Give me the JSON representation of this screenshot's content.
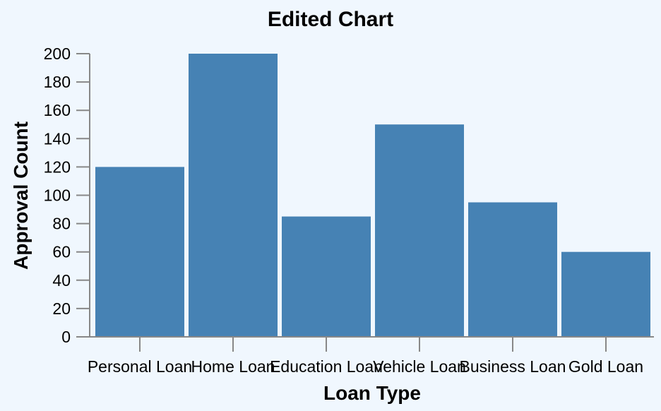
{
  "chart_data": {
    "type": "bar",
    "title": "Edited Chart",
    "xlabel": "Loan Type",
    "ylabel": "Approval Count",
    "categories": [
      "Personal Loan",
      "Home Loan",
      "Education Loan",
      "Vehicle Loan",
      "Business Loan",
      "Gold Loan"
    ],
    "values": [
      120,
      200,
      85,
      150,
      95,
      60
    ],
    "ylim": [
      0,
      200
    ],
    "yticks": [
      0,
      20,
      40,
      60,
      80,
      100,
      120,
      140,
      160,
      180,
      200
    ],
    "grid": false,
    "bar_color": "#4682b4"
  }
}
